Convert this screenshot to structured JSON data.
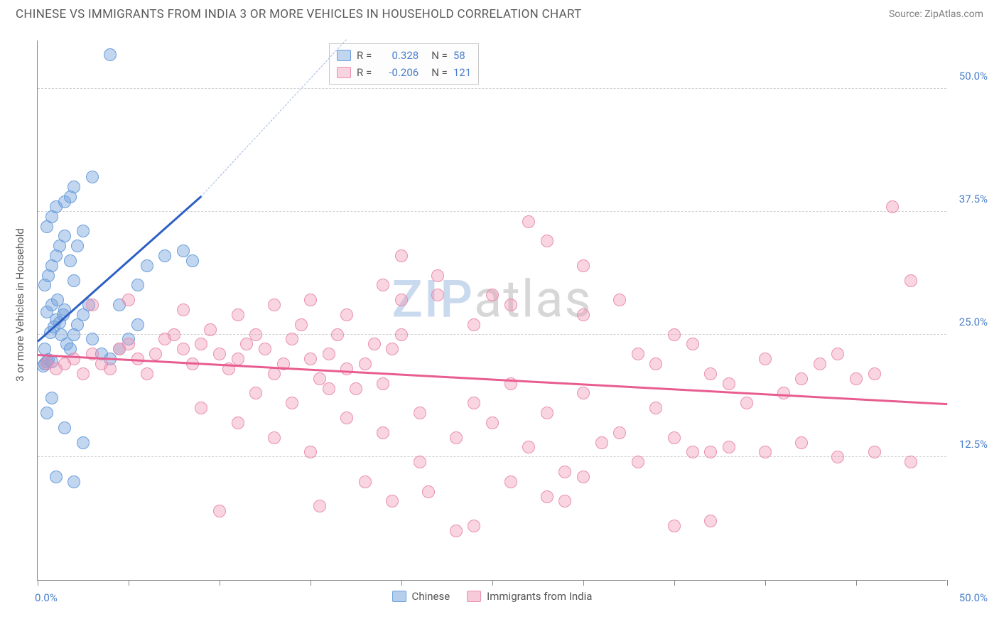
{
  "header": {
    "title": "CHINESE VS IMMIGRANTS FROM INDIA 3 OR MORE VEHICLES IN HOUSEHOLD CORRELATION CHART",
    "source": "Source: ZipAtlas.com"
  },
  "chart": {
    "type": "scatter",
    "ylabel": "3 or more Vehicles in Household",
    "xlim": [
      0,
      50
    ],
    "ylim": [
      0,
      55
    ],
    "xaxis_min_label": "0.0%",
    "xaxis_max_label": "50.0%",
    "xtick_positions": [
      0,
      5,
      10,
      15,
      20,
      25,
      30,
      35,
      40,
      45,
      50
    ],
    "ytick_labels": [
      {
        "value": 12.5,
        "label": "12.5%"
      },
      {
        "value": 25.0,
        "label": "25.0%"
      },
      {
        "value": 37.5,
        "label": "37.5%"
      },
      {
        "value": 50.0,
        "label": "50.0%"
      }
    ],
    "grid_color": "#d0d0d0",
    "background_color": "#ffffff",
    "axis_label_color": "#4a7ec9",
    "point_radius": 9,
    "point_opacity": 0.55,
    "watermark": {
      "prefix": "ZIP",
      "suffix": "atlas"
    },
    "series": [
      {
        "name": "Chinese",
        "color_fill": "rgba(120,165,220,0.45)",
        "color_stroke": "#6a9edc",
        "trend_color": "#2d5fc4",
        "trend": {
          "x1": 0,
          "y1": 24.2,
          "x2": 9.0,
          "y2": 39.0,
          "dashed_extend_to_x": 17.0,
          "dashed_extend_to_y": 55.0
        },
        "R": "0.328",
        "N": "58",
        "points": [
          [
            0.3,
            21.8
          ],
          [
            0.4,
            22.0
          ],
          [
            0.5,
            22.2
          ],
          [
            0.6,
            22.4
          ],
          [
            0.8,
            22.2
          ],
          [
            0.4,
            23.5
          ],
          [
            0.7,
            25.2
          ],
          [
            0.9,
            25.8
          ],
          [
            1.0,
            26.5
          ],
          [
            1.2,
            26.2
          ],
          [
            1.4,
            27.0
          ],
          [
            0.5,
            27.3
          ],
          [
            0.8,
            28.0
          ],
          [
            1.1,
            28.5
          ],
          [
            1.5,
            27.5
          ],
          [
            1.3,
            25.0
          ],
          [
            1.6,
            24.0
          ],
          [
            1.8,
            23.5
          ],
          [
            2.0,
            25.0
          ],
          [
            2.2,
            26.0
          ],
          [
            2.5,
            27.0
          ],
          [
            2.8,
            28.0
          ],
          [
            3.0,
            24.5
          ],
          [
            3.5,
            23.0
          ],
          [
            0.4,
            30.0
          ],
          [
            0.6,
            31.0
          ],
          [
            0.8,
            32.0
          ],
          [
            1.0,
            33.0
          ],
          [
            1.2,
            34.0
          ],
          [
            1.5,
            35.0
          ],
          [
            1.8,
            32.5
          ],
          [
            2.0,
            30.5
          ],
          [
            2.2,
            34.0
          ],
          [
            2.5,
            35.5
          ],
          [
            1.0,
            38.0
          ],
          [
            1.5,
            38.5
          ],
          [
            1.8,
            39.0
          ],
          [
            0.5,
            36.0
          ],
          [
            0.8,
            37.0
          ],
          [
            2.0,
            40.0
          ],
          [
            3.0,
            41.0
          ],
          [
            4.0,
            53.5
          ],
          [
            0.5,
            17.0
          ],
          [
            0.8,
            18.5
          ],
          [
            1.5,
            15.5
          ],
          [
            2.5,
            14.0
          ],
          [
            2.0,
            10.0
          ],
          [
            1.0,
            10.5
          ],
          [
            4.0,
            22.5
          ],
          [
            4.5,
            23.5
          ],
          [
            5.0,
            24.5
          ],
          [
            5.5,
            26.0
          ],
          [
            6.0,
            32.0
          ],
          [
            7.0,
            33.0
          ],
          [
            8.0,
            33.5
          ],
          [
            8.5,
            32.5
          ],
          [
            4.5,
            28.0
          ],
          [
            5.5,
            30.0
          ]
        ]
      },
      {
        "name": "Immigrants from India",
        "color_fill": "rgba(240,150,180,0.40)",
        "color_stroke": "#e98fb0",
        "trend_color": "#e85d8f",
        "trend": {
          "x1": 0,
          "y1": 22.8,
          "x2": 50,
          "y2": 17.8
        },
        "R": "-0.206",
        "N": "121",
        "points": [
          [
            0.5,
            22.0
          ],
          [
            1.0,
            21.5
          ],
          [
            1.5,
            22.0
          ],
          [
            2.0,
            22.5
          ],
          [
            2.5,
            21.0
          ],
          [
            3.0,
            23.0
          ],
          [
            3.5,
            22.0
          ],
          [
            4.0,
            21.5
          ],
          [
            4.5,
            23.5
          ],
          [
            5.0,
            24.0
          ],
          [
            5.5,
            22.5
          ],
          [
            6.0,
            21.0
          ],
          [
            6.5,
            23.0
          ],
          [
            7.0,
            24.5
          ],
          [
            7.5,
            25.0
          ],
          [
            8.0,
            23.5
          ],
          [
            8.5,
            22.0
          ],
          [
            9.0,
            24.0
          ],
          [
            9.5,
            25.5
          ],
          [
            10.0,
            23.0
          ],
          [
            10.5,
            21.5
          ],
          [
            11.0,
            22.5
          ],
          [
            11.5,
            24.0
          ],
          [
            12.0,
            25.0
          ],
          [
            12.5,
            23.5
          ],
          [
            13.0,
            21.0
          ],
          [
            13.5,
            22.0
          ],
          [
            14.0,
            24.5
          ],
          [
            14.5,
            26.0
          ],
          [
            15.0,
            22.5
          ],
          [
            15.5,
            20.5
          ],
          [
            16.0,
            23.0
          ],
          [
            16.5,
            25.0
          ],
          [
            17.0,
            21.5
          ],
          [
            17.5,
            19.5
          ],
          [
            18.0,
            22.0
          ],
          [
            18.5,
            24.0
          ],
          [
            19.0,
            20.0
          ],
          [
            19.5,
            23.5
          ],
          [
            20.0,
            25.0
          ],
          [
            3.0,
            28.0
          ],
          [
            5.0,
            28.5
          ],
          [
            8.0,
            27.5
          ],
          [
            11.0,
            27.0
          ],
          [
            13.0,
            28.0
          ],
          [
            15.0,
            28.5
          ],
          [
            17.0,
            27.0
          ],
          [
            19.0,
            30.0
          ],
          [
            20.0,
            28.5
          ],
          [
            22.0,
            29.0
          ],
          [
            24.0,
            26.0
          ],
          [
            26.0,
            28.0
          ],
          [
            28.0,
            34.5
          ],
          [
            30.0,
            27.0
          ],
          [
            32.0,
            28.5
          ],
          [
            34.0,
            22.0
          ],
          [
            36.0,
            24.0
          ],
          [
            38.0,
            20.0
          ],
          [
            40.0,
            22.5
          ],
          [
            42.0,
            20.5
          ],
          [
            44.0,
            23.0
          ],
          [
            46.0,
            21.0
          ],
          [
            47.0,
            38.0
          ],
          [
            48.0,
            30.5
          ],
          [
            45.0,
            20.5
          ],
          [
            43.0,
            22.0
          ],
          [
            41.0,
            19.0
          ],
          [
            39.0,
            18.0
          ],
          [
            37.0,
            13.0
          ],
          [
            35.0,
            14.5
          ],
          [
            33.0,
            12.0
          ],
          [
            31.0,
            14.0
          ],
          [
            29.0,
            11.0
          ],
          [
            27.0,
            13.5
          ],
          [
            25.0,
            16.0
          ],
          [
            23.0,
            14.5
          ],
          [
            21.0,
            17.0
          ],
          [
            19.0,
            15.0
          ],
          [
            17.0,
            16.5
          ],
          [
            15.0,
            13.0
          ],
          [
            13.0,
            14.5
          ],
          [
            11.0,
            16.0
          ],
          [
            9.0,
            17.5
          ],
          [
            10.0,
            7.0
          ],
          [
            23.0,
            5.0
          ],
          [
            29.0,
            8.0
          ],
          [
            35.0,
            5.5
          ],
          [
            37.0,
            6.0
          ],
          [
            20.0,
            33.0
          ],
          [
            22.0,
            31.0
          ],
          [
            25.0,
            29.0
          ],
          [
            27.0,
            36.5
          ],
          [
            30.0,
            32.0
          ],
          [
            15.5,
            7.5
          ],
          [
            18.0,
            10.0
          ],
          [
            21.0,
            12.0
          ],
          [
            24.0,
            18.0
          ],
          [
            26.0,
            20.0
          ],
          [
            28.0,
            17.0
          ],
          [
            30.0,
            19.0
          ],
          [
            32.0,
            15.0
          ],
          [
            34.0,
            17.5
          ],
          [
            36.0,
            13.0
          ],
          [
            38.0,
            13.5
          ],
          [
            40.0,
            13.0
          ],
          [
            42.0,
            14.0
          ],
          [
            44.0,
            12.5
          ],
          [
            46.0,
            13.0
          ],
          [
            48.0,
            12.0
          ],
          [
            33.0,
            23.0
          ],
          [
            35.0,
            25.0
          ],
          [
            37.0,
            21.0
          ],
          [
            24.0,
            5.5
          ],
          [
            26.0,
            10.0
          ],
          [
            28.0,
            8.5
          ],
          [
            30.0,
            10.5
          ],
          [
            19.5,
            8.0
          ],
          [
            21.5,
            9.0
          ],
          [
            12.0,
            19.0
          ],
          [
            14.0,
            18.0
          ],
          [
            16.0,
            19.5
          ]
        ]
      }
    ],
    "bottom_legend": [
      {
        "label": "Chinese",
        "fill": "rgba(120,165,220,0.55)",
        "stroke": "#6a9edc"
      },
      {
        "label": "Immigrants from India",
        "fill": "rgba(240,150,180,0.50)",
        "stroke": "#e98fb0"
      }
    ]
  }
}
